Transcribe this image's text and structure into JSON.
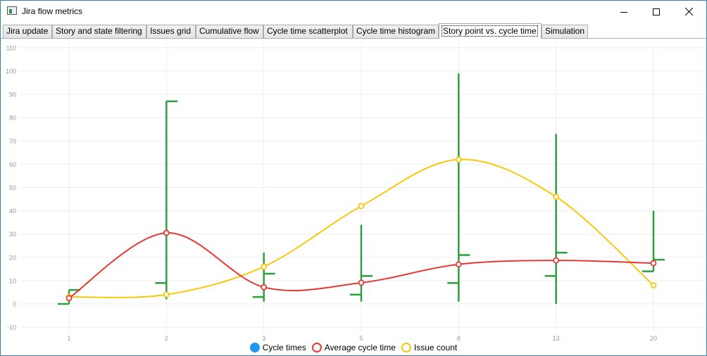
{
  "window": {
    "title": "Jira flow metrics"
  },
  "tabs": [
    {
      "label": "Jira update",
      "active": false
    },
    {
      "label": "Story and state filtering",
      "active": false
    },
    {
      "label": "Issues grid",
      "active": false
    },
    {
      "label": "Cumulative flow",
      "active": false
    },
    {
      "label": "Cycle time scatterplot",
      "active": false
    },
    {
      "label": "Cycle time histogram",
      "active": false
    },
    {
      "label": "Story point vs. cycle time",
      "active": true
    },
    {
      "label": "Simulation",
      "active": false
    }
  ],
  "colors": {
    "cycle_times": "#2196f3",
    "average": "#e53935",
    "issue_count": "#f9c80e",
    "candlestick": "#2e9e3e",
    "tick": "#999999",
    "grid": "#eeeeee"
  },
  "chart_data": {
    "type": "line",
    "categories": [
      "1",
      "2",
      "3",
      "5",
      "8",
      "13",
      "20"
    ],
    "ylim": [
      -10,
      110
    ],
    "yticks": [
      -10,
      0,
      10,
      20,
      30,
      40,
      50,
      60,
      70,
      80,
      90,
      100,
      110
    ],
    "grid": true,
    "legend_position": "bottom",
    "series": [
      {
        "name": "Cycle times",
        "type": "candlestick",
        "values": [
          {
            "low": 0,
            "high": 6,
            "open": 0,
            "close": 6
          },
          {
            "low": 2,
            "high": 87,
            "open": 9,
            "close": 87
          },
          {
            "low": 1,
            "high": 22,
            "open": 3,
            "close": 13
          },
          {
            "low": 1,
            "high": 34,
            "open": 4,
            "close": 12
          },
          {
            "low": 1,
            "high": 99,
            "open": 9,
            "close": 21
          },
          {
            "low": 0,
            "high": 73,
            "open": 12,
            "close": 22
          },
          {
            "low": 14,
            "high": 40,
            "open": 14,
            "close": 19
          }
        ]
      },
      {
        "name": "Average cycle time",
        "type": "line",
        "values": [
          2.5,
          30.5,
          7.2,
          9.1,
          17,
          18.7,
          17.5
        ]
      },
      {
        "name": "Issue count",
        "type": "line",
        "values": [
          3,
          4,
          16,
          42,
          62,
          46,
          8
        ]
      }
    ]
  }
}
